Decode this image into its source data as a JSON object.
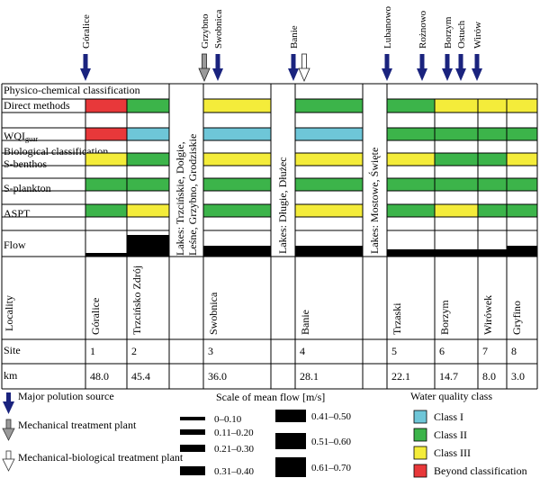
{
  "colors": {
    "class_i": "#6ec6d8",
    "class_ii": "#3cb44a",
    "class_iii": "#f4ec3a",
    "beyond": "#e8383a",
    "polution_arrow": "#1a237e",
    "mechanical_arrow": "#9a9a9a"
  },
  "icons": {
    "major_polution": "navy-down-arrow-icon",
    "mechanical": "gray-down-arrow-icon",
    "mechanical_biological": "white-down-arrow-icon"
  },
  "stations": [
    {
      "name": "Góralice",
      "locality": "Góralice",
      "site": "1",
      "km": "48.0"
    },
    {
      "name": "Trzcińsko Zdrój",
      "locality": "Trzcińsko Zdrój",
      "site": "2",
      "km": "45.4"
    },
    {
      "name": "Swobnica",
      "locality": "Swobnica",
      "site": "3",
      "km": "36.0"
    },
    {
      "name": "Banie",
      "locality": "Banie",
      "site": "4",
      "km": "28.1"
    },
    {
      "name": "Trzaski",
      "locality": "Trzaski",
      "site": "5",
      "km": "22.1"
    },
    {
      "name": "Borzym",
      "locality": "Borzym",
      "site": "6",
      "km": "14.7"
    },
    {
      "name": "Wirówek",
      "locality": "Wirówek",
      "site": "7",
      "km": "8.0"
    },
    {
      "name": "Gryfino",
      "locality": "Gryfino",
      "site": "8",
      "km": "3.0"
    }
  ],
  "lake_labels": [
    {
      "line1": "Lakes: Trzcińskie, Dołgie,",
      "line2": "Leśne, Grzybno, Grodziskie"
    },
    {
      "line1": "Lakes: Długie, Dłużec",
      "line2": ""
    },
    {
      "line1": "Lakes: Mostowe, Święte",
      "line2": ""
    }
  ],
  "sources": [
    {
      "label": "Góralice",
      "type": "major"
    },
    {
      "label": "Grzybno",
      "type": "mechanical"
    },
    {
      "label": "Swobnica",
      "type": "major"
    },
    {
      "label": "Banie",
      "type": "major"
    },
    {
      "label": "",
      "type": "mechanical_biological"
    },
    {
      "label": "Lubanowo",
      "type": "major"
    },
    {
      "label": "Rożnowo",
      "type": "major"
    },
    {
      "label": "Borzym",
      "type": "major"
    },
    {
      "label": "Ostuch",
      "type": "major"
    },
    {
      "label": "Wirów",
      "type": "major"
    }
  ],
  "row_labels": {
    "physico": "Physico-chemical classification",
    "direct": "Direct methods",
    "wqi": "WQI",
    "wqi_sub": "guar",
    "biological": "Biological classification",
    "sbenthos": "S-benthos",
    "splankton": "S-plankton",
    "aspt": "ASPT",
    "flow": "Flow",
    "locality": "Locality",
    "site": "Site",
    "km": "km"
  },
  "classification": {
    "direct": [
      "beyond",
      "class_ii",
      "class_iii",
      "class_ii",
      "class_ii",
      "class_iii",
      "class_iii",
      "class_iii"
    ],
    "wqi": [
      "beyond",
      "class_i",
      "class_i",
      "class_i",
      "class_ii",
      "class_ii",
      "class_ii",
      "class_ii"
    ],
    "sbenthos": [
      "class_iii",
      "class_ii",
      "class_iii",
      "class_iii",
      "class_iii",
      "class_ii",
      "class_ii",
      "class_iii"
    ],
    "splankton": [
      "class_ii",
      "class_ii",
      "class_ii",
      "class_ii",
      "class_ii",
      "class_ii",
      "class_ii",
      "class_ii"
    ],
    "aspt": [
      "class_ii",
      "class_iii",
      "class_ii",
      "class_iii",
      "class_ii",
      "class_iii",
      "class_ii",
      "class_ii"
    ]
  },
  "flow_class": [
    1,
    6,
    3,
    3,
    2,
    2,
    2,
    3
  ],
  "legend": {
    "major": "Major polution source",
    "mechanical": "Mechanical treatment plant",
    "mechanical_biological": "Mechanical-biological treatment plant",
    "flow_title": "Scale of mean flow [m/s]",
    "flow_scale": [
      "0–0.10",
      "0.11–0.20",
      "0.21–0.30",
      "0.31–0.40",
      "0.41–0.50",
      "0.51–0.60",
      "0.61–0.70"
    ],
    "water_title": "Water quality class",
    "classes": [
      {
        "label": "Class I",
        "key": "class_i"
      },
      {
        "label": "Class II",
        "key": "class_ii"
      },
      {
        "label": "Class III",
        "key": "class_iii"
      },
      {
        "label": "Beyond classification",
        "key": "beyond"
      }
    ]
  }
}
